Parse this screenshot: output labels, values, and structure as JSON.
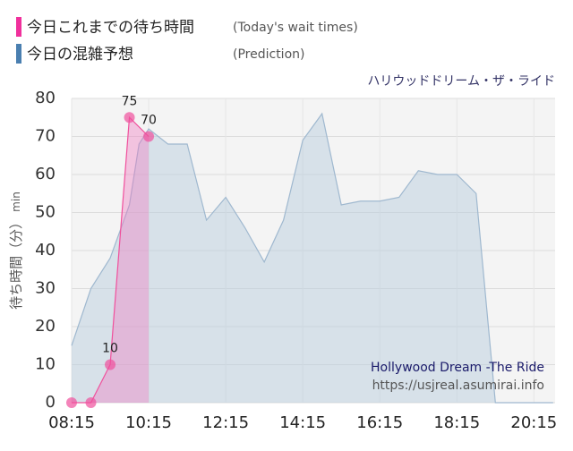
{
  "chart_data": {
    "type": "area",
    "title": "ハリウッドドリーム・ザ・ライド",
    "annotations": [
      "Hollywood Dream -The Ride",
      "https://usjreal.asumirai.info"
    ],
    "ylabel": "待ち時間（分）",
    "yunit": "min",
    "xlim": [
      8.25,
      20.8
    ],
    "ylim": [
      0,
      80
    ],
    "xticks": [
      {
        "value": 8.25,
        "label": "08:15"
      },
      {
        "value": 10.25,
        "label": "10:15"
      },
      {
        "value": 12.25,
        "label": "12:15"
      },
      {
        "value": 14.25,
        "label": "14:15"
      },
      {
        "value": 16.25,
        "label": "16:15"
      },
      {
        "value": 18.25,
        "label": "18:15"
      },
      {
        "value": 20.25,
        "label": "20:15"
      }
    ],
    "yticks": [
      0,
      10,
      20,
      30,
      40,
      50,
      60,
      70,
      80
    ],
    "grid": true,
    "series": [
      {
        "name": "今日これまでの待ち時間",
        "name_en": "(Today's wait times)",
        "color": "#f0509c",
        "x": [
          8.25,
          8.75,
          9.25,
          9.75,
          10.25
        ],
        "values": [
          0,
          0,
          10,
          75,
          70
        ]
      },
      {
        "name": "今日の混雑予想",
        "name_en": "(Prediction)",
        "color": "#4a7fb0",
        "x": [
          8.25,
          8.75,
          9.25,
          9.75,
          10.0,
          10.25,
          10.75,
          11.25,
          11.75,
          12.25,
          12.75,
          13.25,
          13.75,
          14.25,
          14.75,
          15.25,
          15.75,
          16.25,
          16.75,
          17.25,
          17.75,
          18.25,
          18.75,
          19.25,
          19.75,
          20.25,
          20.75
        ],
        "values": [
          15,
          30,
          38,
          52,
          68,
          72,
          68,
          68,
          48,
          54,
          46,
          37,
          48,
          69,
          76,
          52,
          53,
          53,
          54,
          61,
          60,
          60,
          55,
          0,
          0,
          0,
          0
        ]
      }
    ]
  }
}
